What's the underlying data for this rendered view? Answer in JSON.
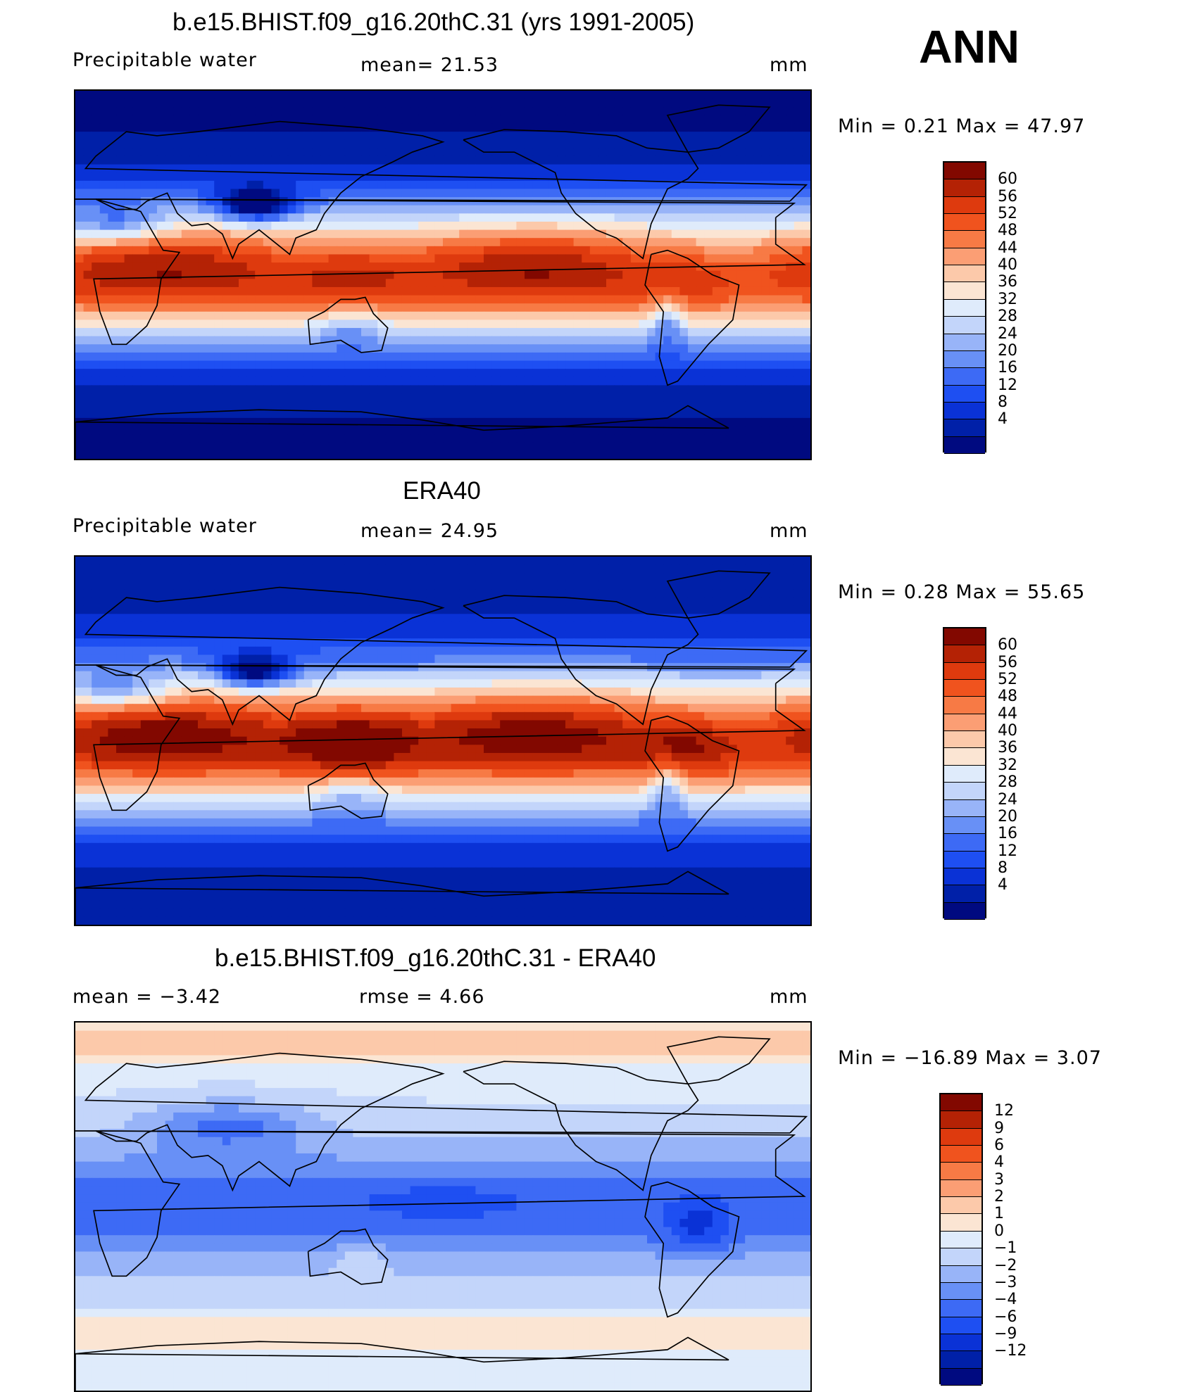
{
  "season": "ANN",
  "colors": {
    "abs_scale": [
      "#000a80",
      "#0020a8",
      "#0a32d6",
      "#1e4ff2",
      "#3d6af5",
      "#6890f6",
      "#98b4f8",
      "#c3d5fa",
      "#dfebfb",
      "#fbe5d3",
      "#fcc9aa",
      "#fb9e74",
      "#f77a45",
      "#f0531e",
      "#de3a0e",
      "#b42205",
      "#820800"
    ],
    "diff_scale": [
      "#000a80",
      "#0020a8",
      "#0a32d6",
      "#1e4ff2",
      "#3d6af5",
      "#6890f6",
      "#98b4f8",
      "#c3d5fa",
      "#dfebfb",
      "#fbe5d3",
      "#fcc9aa",
      "#fb9e74",
      "#f77a45",
      "#f0531e",
      "#de3a0e",
      "#b42205",
      "#820800"
    ],
    "coastline": "#000000"
  },
  "panels": [
    {
      "title": "b.e15.BHIST.f09_g16.20thC.31 (yrs 1991-2005)",
      "left_label": "Precipitable  water",
      "center_label": "mean=   21.53",
      "units": "mm",
      "minmax": "Min  =     0.21  Max  =     47.97",
      "colorbar": [
        "60",
        "56",
        "52",
        "48",
        "44",
        "40",
        "36",
        "32",
        "28",
        "24",
        "20",
        "16",
        "12",
        "8",
        "4"
      ],
      "pattern": "model"
    },
    {
      "title": "ERA40",
      "left_label": "Precipitable  water",
      "center_label": "mean=   24.95",
      "units": "mm",
      "minmax": "Min  =     0.28  Max  =     55.65",
      "colorbar": [
        "60",
        "56",
        "52",
        "48",
        "44",
        "40",
        "36",
        "32",
        "28",
        "24",
        "20",
        "16",
        "12",
        "8",
        "4"
      ],
      "pattern": "obs"
    },
    {
      "title": "b.e15.BHIST.f09_g16.20thC.31 - ERA40",
      "left_label": "mean  =    −3.42",
      "center_label": "rmse  =     4.66",
      "units": "mm",
      "minmax": "Min  = −16.89  Max  =       3.07",
      "colorbar": [
        "12",
        "9",
        "6",
        "4",
        "3",
        "2",
        "1",
        "0",
        "−1",
        "−2",
        "−3",
        "−4",
        "−6",
        "−9",
        "−12"
      ],
      "pattern": "diff"
    }
  ]
}
